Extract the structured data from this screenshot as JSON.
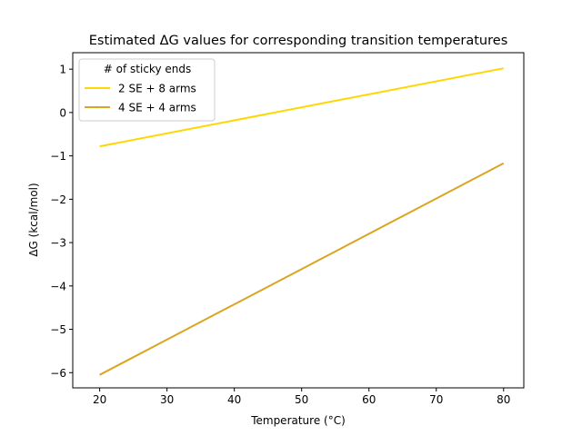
{
  "chart_data": {
    "type": "line",
    "title": "Estimated ΔG values for corresponding transition temperatures",
    "xlabel": "Temperature (°C)",
    "ylabel": "ΔG (kcal/mol)",
    "xlim": [
      16,
      83
    ],
    "ylim": [
      -6.35,
      1.38
    ],
    "xticks": [
      20,
      30,
      40,
      50,
      60,
      70,
      80
    ],
    "yticks": [
      -6,
      -5,
      -4,
      -3,
      -2,
      -1,
      0,
      1
    ],
    "ytick_labels": [
      "−6",
      "−5",
      "−4",
      "−3",
      "−2",
      "−1",
      "0",
      "1"
    ],
    "grid": false,
    "legend": {
      "title": "# of sticky ends",
      "placement": "top-left"
    },
    "series": [
      {
        "name": "2 SE + 8 arms",
        "color": "#FFD700",
        "x": [
          20,
          80
        ],
        "y": [
          -0.78,
          1.02
        ]
      },
      {
        "name": "4 SE + 4 arms",
        "color": "#DAA520",
        "x": [
          20,
          80
        ],
        "y": [
          -6.05,
          -1.17
        ]
      }
    ]
  }
}
